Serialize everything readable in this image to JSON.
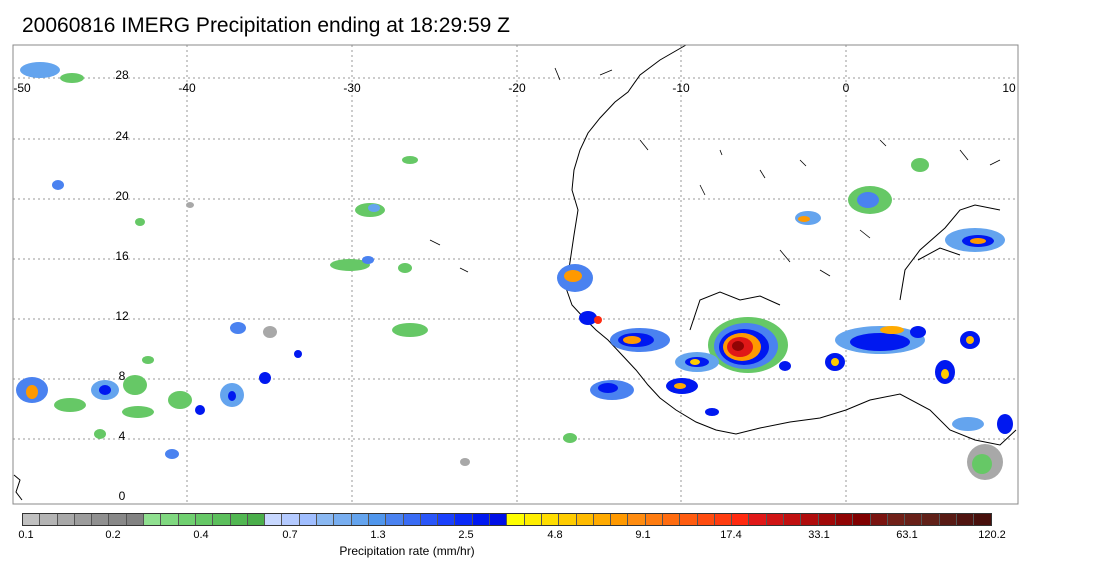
{
  "title": "20060816 IMERG Precipitation ending at 18:29:59 Z",
  "map": {
    "lon_labels": [
      "-50",
      "-40",
      "-30",
      "-20",
      "-10",
      "0",
      "10"
    ],
    "lat_labels": [
      "28",
      "24",
      "20",
      "16",
      "12",
      "8",
      "4",
      "0"
    ],
    "frame_color": "#888888",
    "grid_color": "#999999",
    "coast_color": "#000000"
  },
  "colorbar": {
    "label": "Precipitation rate (mm/hr)",
    "tick_labels": [
      "0.1",
      "0.2",
      "0.4",
      "0.7",
      "1.3",
      "2.5",
      "4.8",
      "9.1",
      "17.4",
      "33.1",
      "63.1",
      "120.2"
    ],
    "colors": [
      "#c0c0c0",
      "#b4b4b4",
      "#a8a8a8",
      "#9c9c9c",
      "#909090",
      "#888888",
      "#828282",
      "#90e090",
      "#80d880",
      "#70d070",
      "#66c866",
      "#5cbf5c",
      "#52b752",
      "#4aae4a",
      "#c8d8ff",
      "#b4caff",
      "#a0beff",
      "#8ab8f2",
      "#78aef0",
      "#64a4ee",
      "#5096ec",
      "#4a82f0",
      "#3a6cf4",
      "#2a56f8",
      "#1a40fc",
      "#0a2af8",
      "#0018f0",
      "#000fe6",
      "#ffff00",
      "#ffee00",
      "#ffdd00",
      "#ffcc00",
      "#ffbb00",
      "#ffaa00",
      "#ff9900",
      "#ff8c10",
      "#ff7c10",
      "#ff6c10",
      "#ff5c10",
      "#ff4c10",
      "#ff3c10",
      "#ff2a10",
      "#e01818",
      "#d01414",
      "#c01010",
      "#b00c0c",
      "#a00808",
      "#900404",
      "#800000",
      "#7a1410",
      "#702018",
      "#682018",
      "#602018",
      "#581a14",
      "#501410",
      "#48100c"
    ]
  }
}
